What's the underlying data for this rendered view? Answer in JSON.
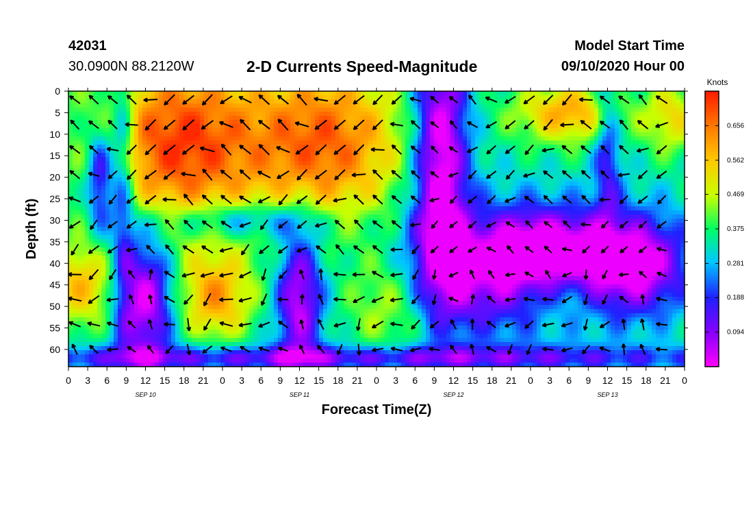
{
  "header": {
    "station_id": "42031",
    "coordinates": "30.0900N 88.2120W",
    "title": "2-D Currents Speed-Magnitude",
    "model_start_label": "Model Start Time",
    "model_start_value": "09/10/2020 Hour 00"
  },
  "chart_data": {
    "type": "heatmap",
    "title": "2-D Currents Speed-Magnitude",
    "xlabel": "Forecast Time(Z)",
    "ylabel": "Depth (ft)",
    "x_ticks": [
      "0",
      "3",
      "6",
      "9",
      "12",
      "15",
      "18",
      "21",
      "0",
      "3",
      "6",
      "9",
      "12",
      "15",
      "18",
      "21",
      "0",
      "3",
      "6",
      "9",
      "12",
      "15",
      "18",
      "21",
      "0",
      "3",
      "6",
      "9",
      "12",
      "15",
      "18",
      "21",
      "0"
    ],
    "day_labels": [
      "SEP 10",
      "SEP 11",
      "SEP 12",
      "SEP 13"
    ],
    "y_ticks": [
      0,
      5,
      10,
      15,
      20,
      25,
      30,
      35,
      40,
      45,
      50,
      55,
      60
    ],
    "ylim": [
      0,
      64
    ],
    "xlim_hours": [
      0,
      96
    ],
    "colorbar": {
      "unit": "Knots",
      "ticks": [
        0.656,
        0.562,
        0.469,
        0.375,
        0.281,
        0.188,
        0.094
      ],
      "range": [
        0.0,
        0.75
      ],
      "colors": [
        "#ff00ff",
        "#8a00ff",
        "#2020ff",
        "#00c8ff",
        "#00ff64",
        "#c8ff00",
        "#ffc800",
        "#ff7a00",
        "#ff1a00"
      ]
    }
  }
}
